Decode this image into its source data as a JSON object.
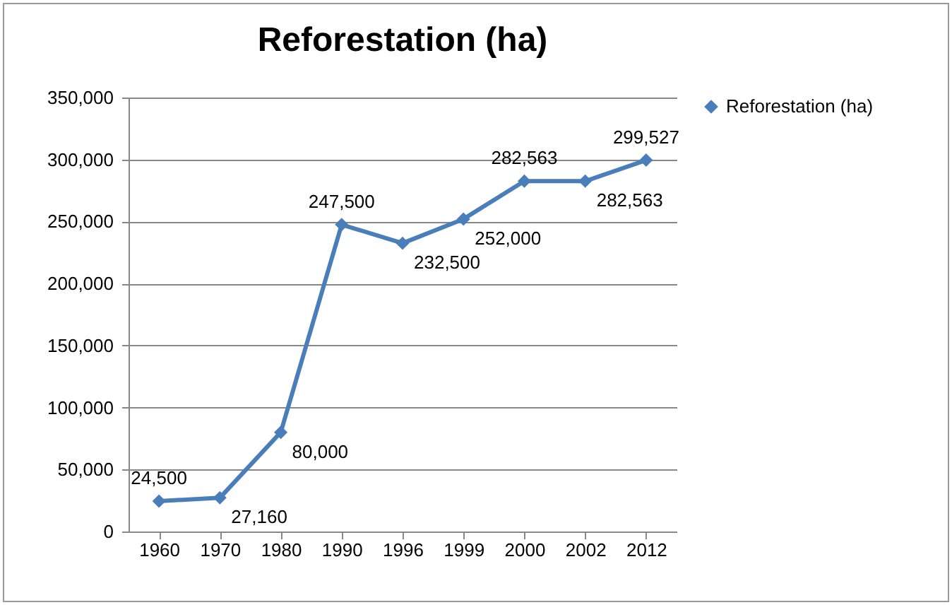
{
  "chart_data": {
    "type": "line",
    "title": "Reforestation (ha)",
    "categories": [
      "1960",
      "1970",
      "1980",
      "1990",
      "1996",
      "1999",
      "2000",
      "2002",
      "2012"
    ],
    "series": [
      {
        "name": "Reforestation (ha)",
        "color": "#4a7ebb",
        "values": [
          24500,
          27160,
          80000,
          247500,
          232500,
          252000,
          282563,
          282563,
          299527
        ],
        "value_labels": [
          "24,500",
          "27,160",
          "80,000",
          "247,500",
          "232,500",
          "252,000",
          "282,563",
          "282,563",
          "299,527"
        ]
      }
    ],
    "ylim": [
      0,
      350000
    ],
    "yticks": [
      0,
      {
        "value": 50000,
        "label": "50,000"
      },
      {
        "value": 100000,
        "label": "100,000"
      },
      {
        "value": 150000,
        "label": "150,000"
      },
      {
        "value": 200000,
        "label": "200,000"
      },
      {
        "value": 250000,
        "label": "250,000"
      },
      {
        "value": 300000,
        "label": "300,000"
      },
      {
        "value": 350000,
        "label": "350,000"
      }
    ],
    "grid": "y",
    "legend": "right",
    "marker": "diamond"
  }
}
